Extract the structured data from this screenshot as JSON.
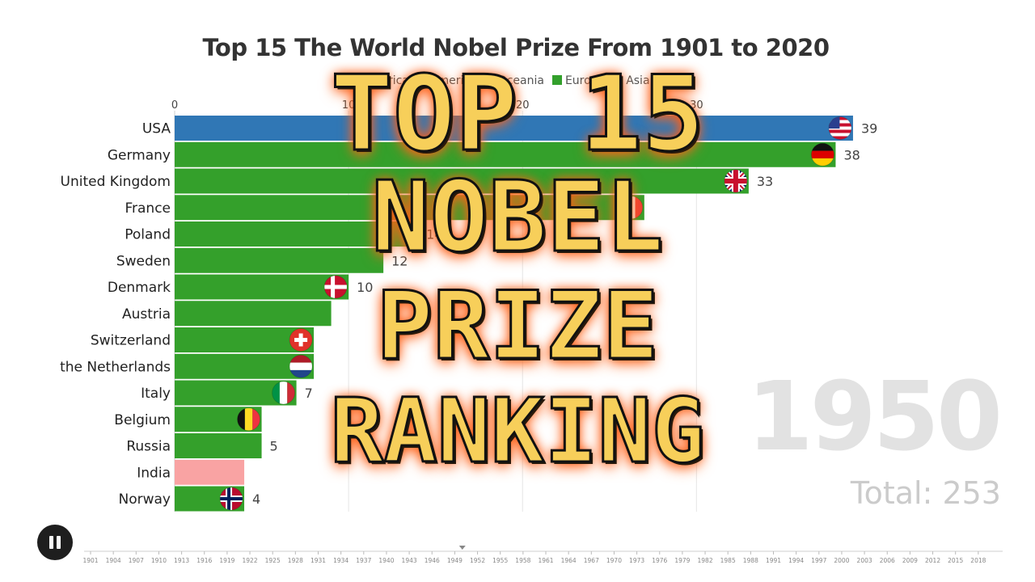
{
  "chart_data": {
    "type": "bar",
    "title": "Top 15 The World Nobel Prize From 1901 to 2020",
    "orientation": "horizontal",
    "legend": [
      {
        "name": "Africa",
        "color": "#a6cee3"
      },
      {
        "name": "America",
        "color": "#1f78b4"
      },
      {
        "name": "Oceania",
        "color": "#b2df8a"
      },
      {
        "name": "Europe",
        "color": "#33a02c"
      },
      {
        "name": "Asia",
        "color": "#fb9a99"
      }
    ],
    "legend_position": "top",
    "categories": [
      "USA",
      "Germany",
      "United Kingdom",
      "France",
      "Poland",
      "Sweden",
      "Denmark",
      "Austria",
      "Switzerland",
      "the Netherlands",
      "Italy",
      "Belgium",
      "Russia",
      "India",
      "Norway"
    ],
    "values": [
      39,
      38,
      33,
      27,
      14,
      12,
      10,
      9,
      8,
      8,
      7,
      5,
      5,
      4,
      4
    ],
    "value_labels": [
      "39",
      "38",
      "33",
      "",
      "14",
      "12",
      "10",
      "",
      "",
      "",
      "7",
      "",
      "5",
      "",
      "4"
    ],
    "regions": [
      "America",
      "Europe",
      "Europe",
      "Europe",
      "Europe",
      "Europe",
      "Europe",
      "Europe",
      "Europe",
      "Europe",
      "Europe",
      "Europe",
      "Europe",
      "Asia",
      "Europe"
    ],
    "flags": [
      "us-flag-icon",
      "germany-flag-icon",
      "uk-flag-icon",
      "france-flag-icon",
      "",
      "",
      "denmark-flag-icon",
      "",
      "switzerland-flag-icon",
      "netherlands-flag-icon",
      "italy-flag-icon",
      "belgium-flag-icon",
      "",
      "",
      "norway-flag-icon"
    ],
    "x_ticks": [
      "0",
      "10",
      "20",
      "30"
    ],
    "xlim": [
      0,
      43
    ],
    "grid": true,
    "year": "1950",
    "total_label": "Total: 253",
    "timeline_years": [
      "1901",
      "1904",
      "1907",
      "1910",
      "1913",
      "1916",
      "1919",
      "1922",
      "1925",
      "1928",
      "1931",
      "1934",
      "1937",
      "1940",
      "1943",
      "1946",
      "1949",
      "1952",
      "1955",
      "1958",
      "1961",
      "1964",
      "1967",
      "1970",
      "1973",
      "1976",
      "1979",
      "1982",
      "1985",
      "1988",
      "1991",
      "1994",
      "1997",
      "2000",
      "2003",
      "2006",
      "2009",
      "2012",
      "2015",
      "2018"
    ],
    "timeline_current_year": 1950
  },
  "overlay": {
    "line1": "TOP 15",
    "line2": "NOBEL",
    "line3": "PRIZE",
    "line4": "RANKING"
  },
  "controls": {
    "play_state": "paused",
    "pause_icon": "pause-icon"
  },
  "colors": {
    "America": "#3077b5",
    "Europe": "#34a02b",
    "Asia": "#f9a3a3",
    "year_text": "#e2e2e2",
    "overlay_text": "#f7cf5a"
  }
}
